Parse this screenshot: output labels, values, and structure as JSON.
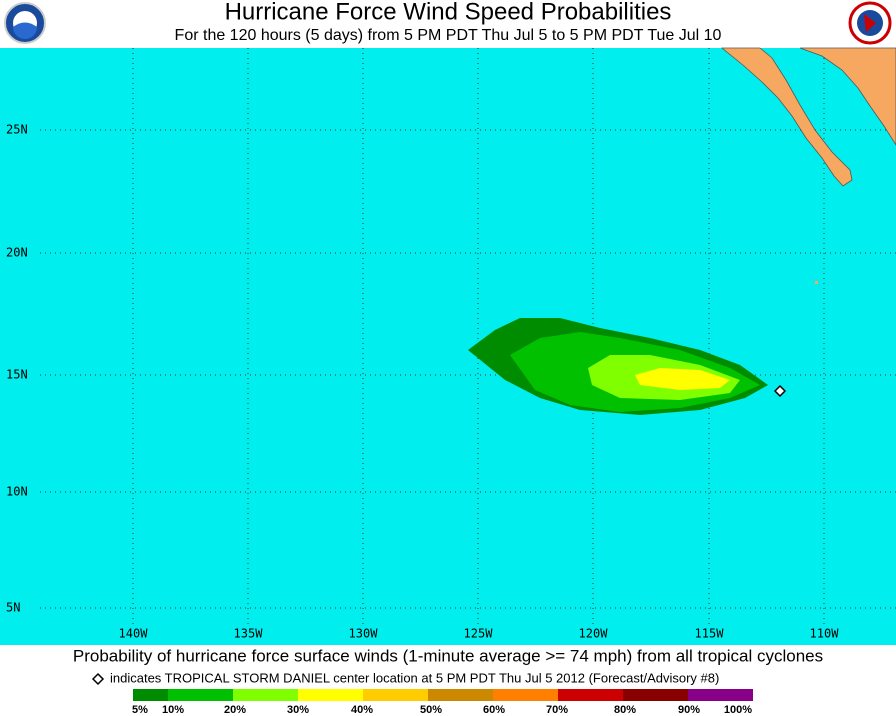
{
  "header": {
    "title": "Hurricane Force Wind Speed Probabilities",
    "subtitle": "For the 120 hours (5 days) from 5 PM PDT Thu Jul 5 to 5 PM PDT Tue Jul 10"
  },
  "map": {
    "lat_labels": [
      "25N",
      "20N",
      "15N",
      "10N",
      "5N"
    ],
    "lon_labels": [
      "140W",
      "135W",
      "130W",
      "125W",
      "120W",
      "115W",
      "110W"
    ]
  },
  "footer": {
    "caption": "Probability of hurricane force surface winds (1-minute average >= 74 mph) from all tropical cyclones",
    "note": "indicates TROPICAL STORM DANIEL center location at 5 PM PDT Thu Jul 5 2012 (Forecast/Advisory #8)"
  },
  "legend": {
    "labels": [
      "5%",
      "10%",
      "20%",
      "30%",
      "40%",
      "50%",
      "60%",
      "70%",
      "80%",
      "90%",
      "100%"
    ],
    "colors": [
      "#008c00",
      "#00c000",
      "#80ff00",
      "#ffff00",
      "#ffcc00",
      "#cc8800",
      "#ff8000",
      "#cc0000",
      "#880000",
      "#880088"
    ]
  }
}
